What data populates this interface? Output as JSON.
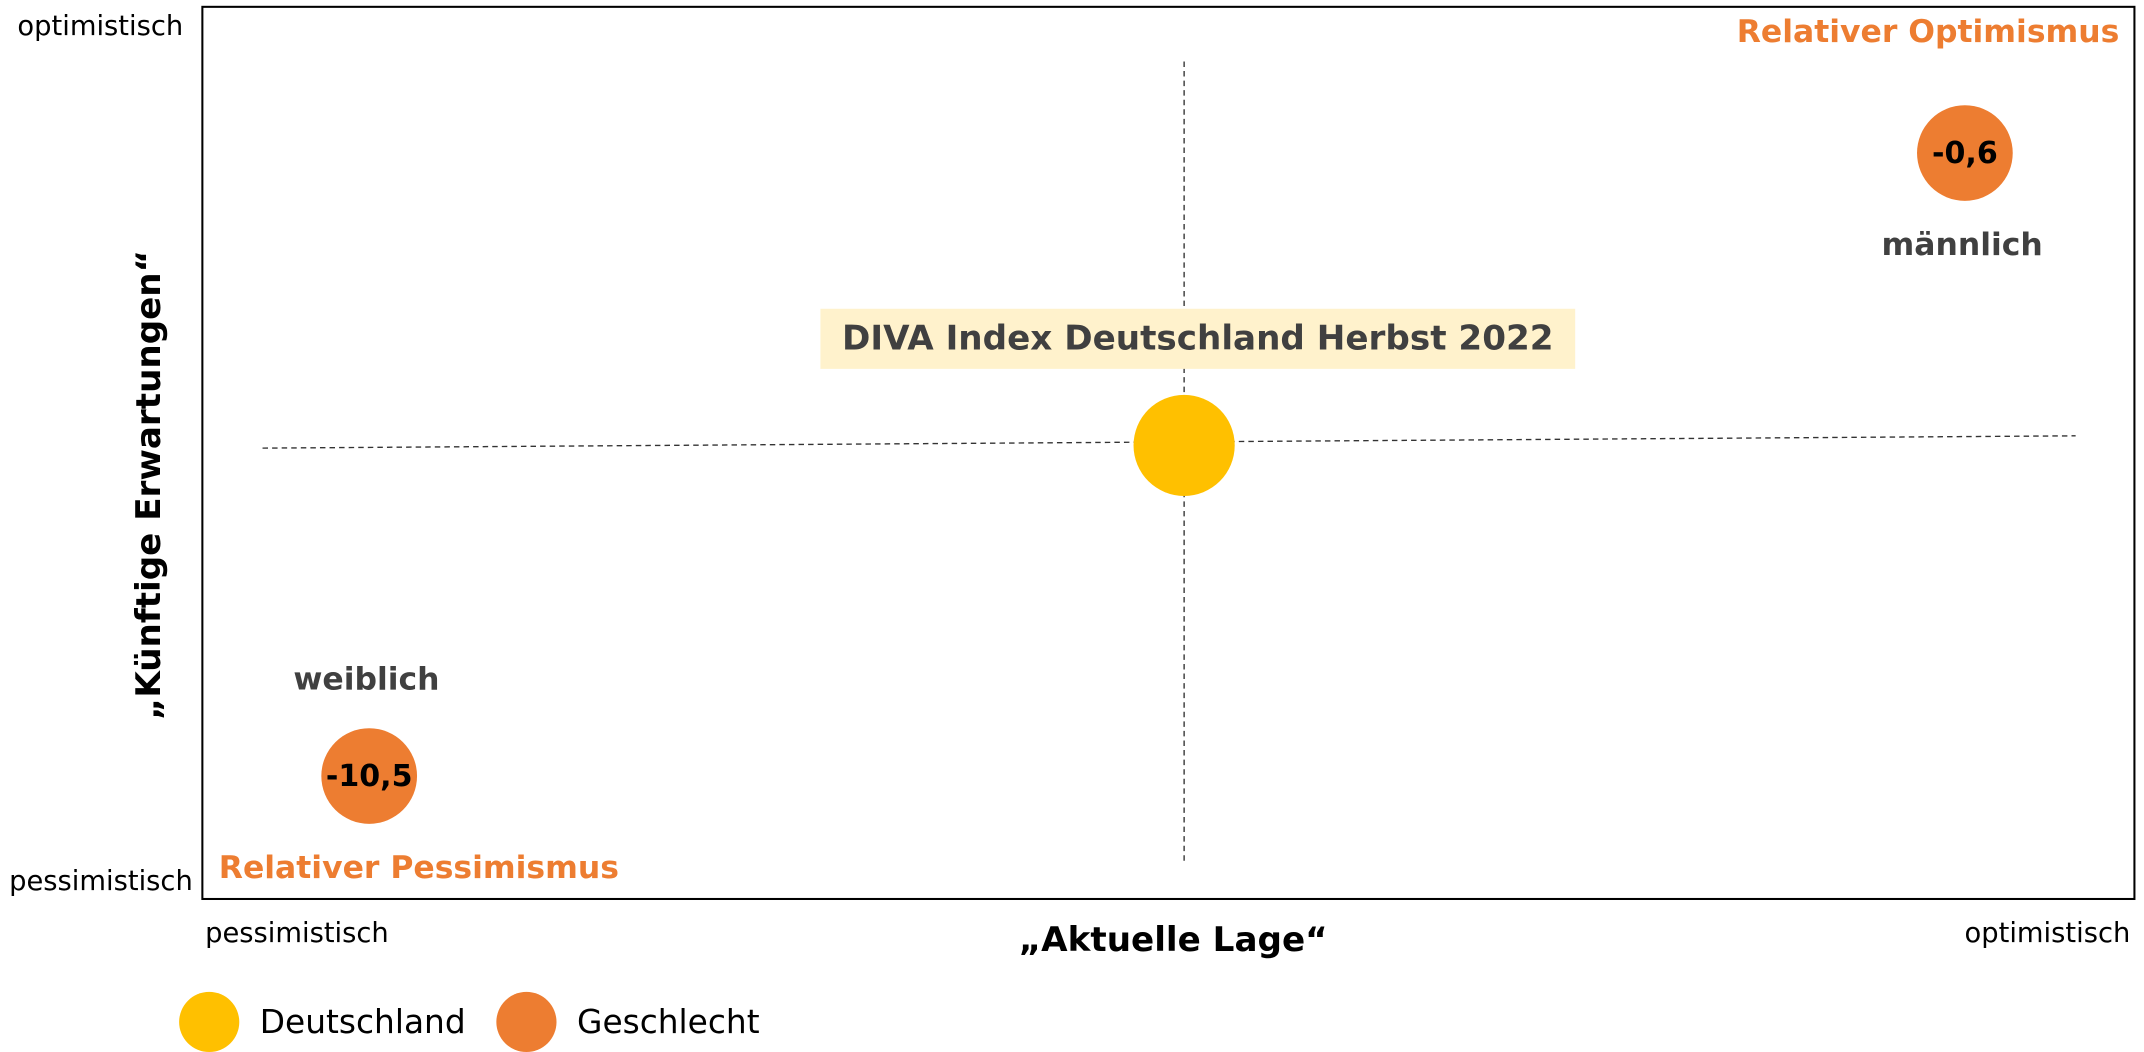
{
  "chart_data": {
    "type": "quadrant",
    "y_label": "„Künftige Erwartungen“",
    "x_label": "„Aktuelle Lage“",
    "y_top": "optimistisch",
    "y_bottom": "pessimistisch",
    "x_left": "pessimistisch",
    "x_right": "optimistisch",
    "quadrant_labels": [
      "Relativer Optimismus",
      "Relativer Pessimismus"
    ],
    "center_label": "DIVA Index Deutschland Herbst 2022",
    "series": [
      {
        "name": "Deutschland",
        "color": "#FFC000"
      },
      {
        "name": "Geschlecht",
        "color": "#ED7D31",
        "categories": [
          "männlich",
          "weiblich"
        ],
        "values": [
          -0.6,
          -10.5
        ],
        "value_labels": [
          "-0,6",
          "-10,5"
        ]
      }
    ]
  }
}
